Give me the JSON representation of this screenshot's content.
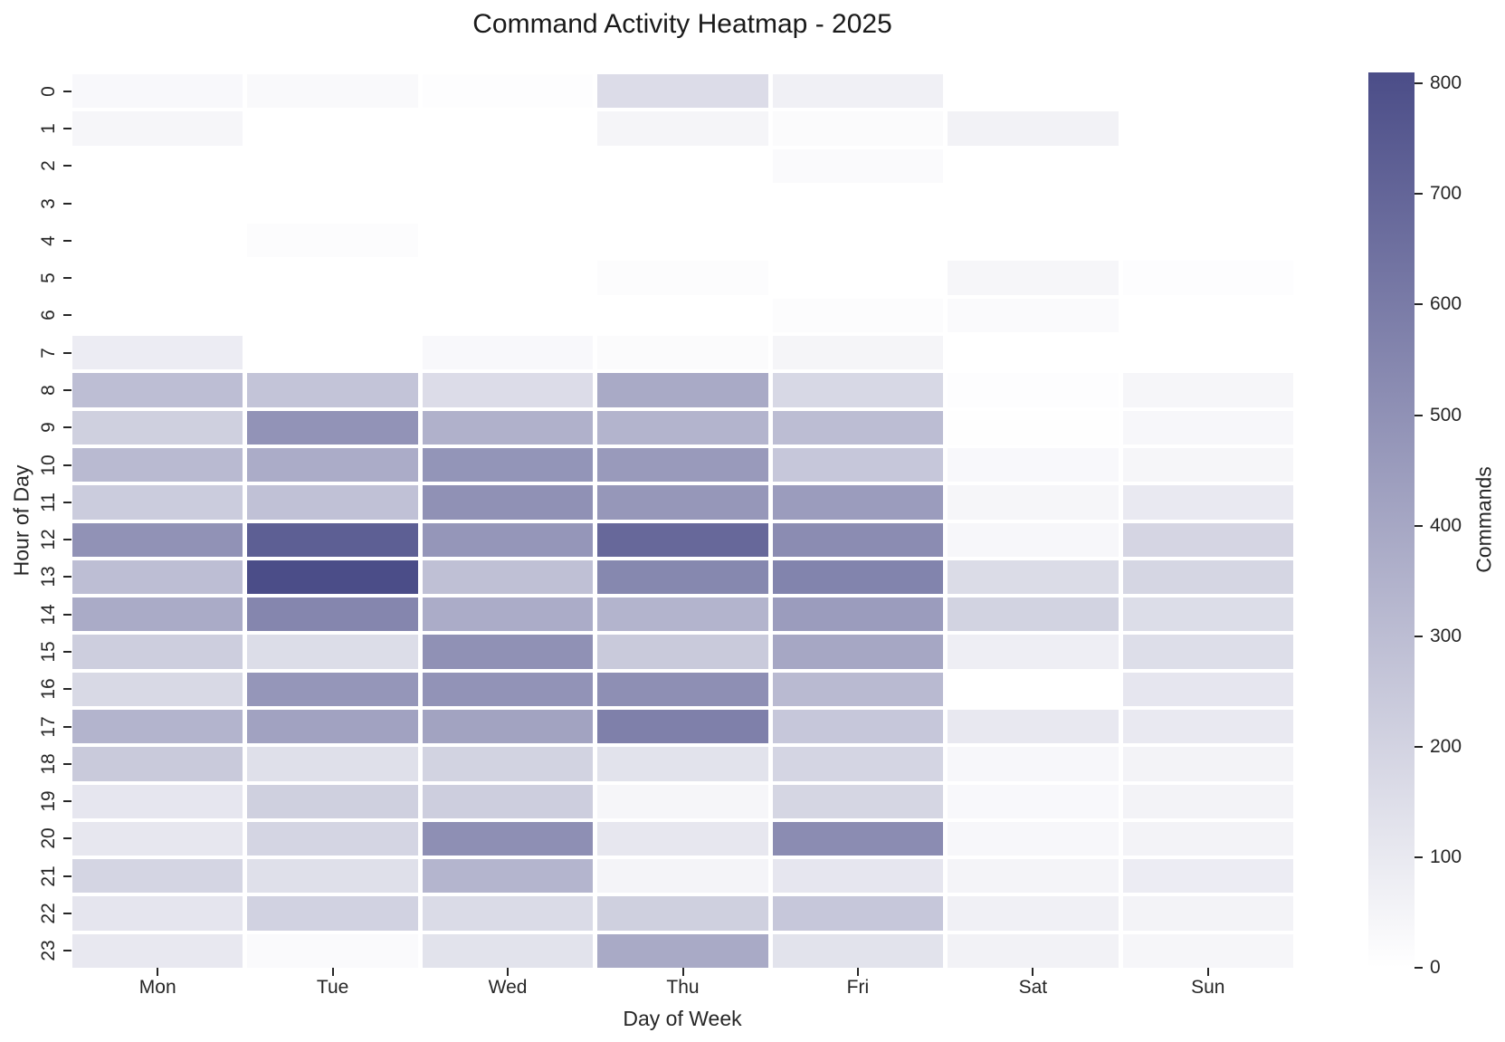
{
  "chart_data": {
    "type": "heatmap",
    "title": "Command Activity Heatmap - 2025",
    "xlabel": "Day of Week",
    "ylabel": "Hour of Day",
    "categories": [
      "Mon",
      "Tue",
      "Wed",
      "Thu",
      "Fri",
      "Sat",
      "Sun"
    ],
    "rows": [
      "0",
      "1",
      "2",
      "3",
      "4",
      "5",
      "6",
      "7",
      "8",
      "9",
      "10",
      "11",
      "12",
      "13",
      "14",
      "15",
      "16",
      "17",
      "18",
      "19",
      "20",
      "21",
      "22",
      "23"
    ],
    "matrix": [
      [
        30,
        28,
        10,
        158,
        66,
        0,
        2
      ],
      [
        40,
        0,
        0,
        45,
        18,
        58,
        0
      ],
      [
        0,
        0,
        0,
        0,
        22,
        0,
        0
      ],
      [
        0,
        0,
        0,
        0,
        0,
        0,
        0
      ],
      [
        0,
        12,
        0,
        0,
        0,
        0,
        0
      ],
      [
        0,
        0,
        0,
        15,
        0,
        40,
        8
      ],
      [
        0,
        0,
        0,
        0,
        12,
        22,
        0
      ],
      [
        85,
        0,
        30,
        20,
        45,
        0,
        0
      ],
      [
        296,
        268,
        157,
        386,
        179,
        10,
        40
      ],
      [
        215,
        492,
        354,
        341,
        300,
        4,
        36
      ],
      [
        313,
        376,
        484,
        461,
        255,
        30,
        42
      ],
      [
        233,
        282,
        501,
        474,
        452,
        42,
        98
      ],
      [
        494,
        730,
        479,
        685,
        524,
        35,
        191
      ],
      [
        296,
        810,
        288,
        543,
        561,
        161,
        188
      ],
      [
        384,
        551,
        376,
        341,
        452,
        201,
        156
      ],
      [
        224,
        156,
        501,
        242,
        402,
        76,
        152
      ],
      [
        174,
        479,
        492,
        510,
        313,
        0,
        112
      ],
      [
        341,
        425,
        420,
        578,
        255,
        103,
        98
      ],
      [
        242,
        143,
        201,
        129,
        192,
        35,
        55
      ],
      [
        112,
        215,
        224,
        40,
        188,
        30,
        54
      ],
      [
        108,
        192,
        510,
        108,
        524,
        35,
        54
      ],
      [
        192,
        143,
        336,
        49,
        112,
        49,
        85
      ],
      [
        117,
        206,
        165,
        215,
        255,
        67,
        54
      ],
      [
        103,
        22,
        129,
        389,
        129,
        58,
        40
      ]
    ],
    "vmin": 0,
    "vmax": 810,
    "colorbar": {
      "label": "Commands",
      "ticks": [
        0,
        100,
        200,
        300,
        400,
        500,
        600,
        700,
        800
      ],
      "position": "right"
    },
    "color_scale": {
      "min_color": "#ffffff",
      "max_color": "#4b4d88"
    },
    "layout": {
      "grid_lines": "white gaps between cells",
      "y_tick_rotation": -90,
      "x_tick_rotation": 0
    }
  }
}
